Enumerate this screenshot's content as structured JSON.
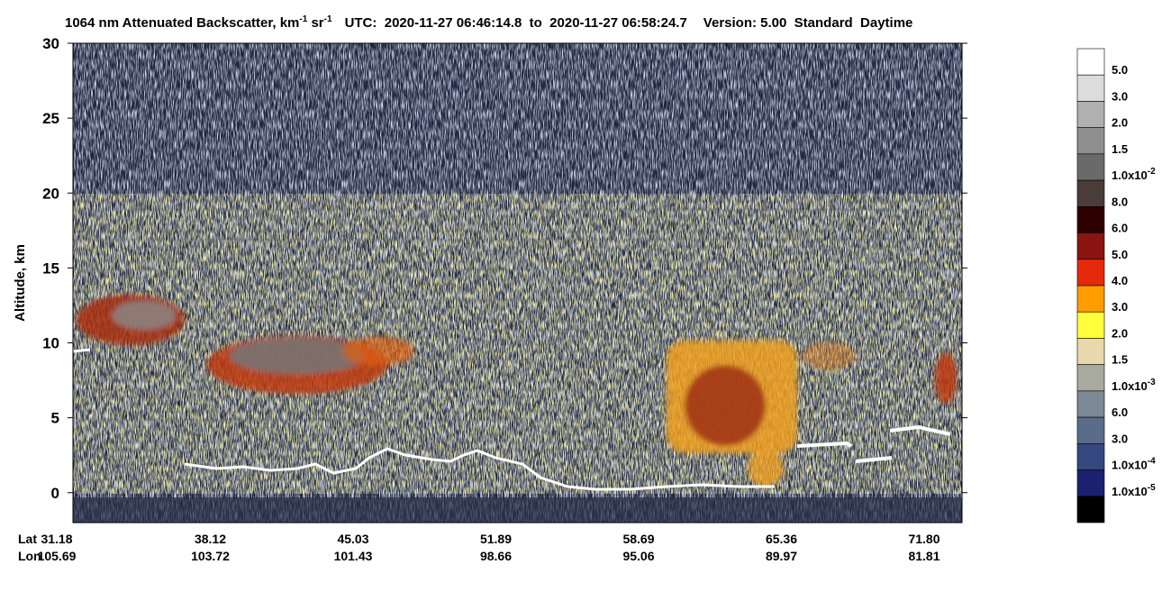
{
  "chart_data": {
    "type": "heatmap",
    "title": {
      "product": "1064 nm Attenuated Backscatter, km",
      "exp1": "-1",
      "sr": " sr",
      "exp2": "-1",
      "utc": "UTC:  2020-11-27 06:46:14.8  to  2020-11-27 06:58:24.7",
      "version": "Version: 5.00  Standard  Daytime"
    },
    "ylabel": "Altitude, km",
    "ylim": [
      -2,
      30
    ],
    "yticks": [
      0,
      5,
      10,
      15,
      20,
      25,
      30
    ],
    "x_rows": [
      {
        "label": "Lat",
        "values": [
          "31.18",
          "38.12",
          "45.03",
          "51.89",
          "58.69",
          "65.36",
          "71.80"
        ]
      },
      {
        "label": "Lon",
        "values": [
          "105.69",
          "103.72",
          "101.43",
          "98.66",
          "95.06",
          "89.97",
          "81.81"
        ]
      }
    ],
    "colorbar": {
      "colors": [
        "#ffffff",
        "#dcdcdc",
        "#b0b0b0",
        "#8e8e8e",
        "#6a6a6a",
        "#4a3c38",
        "#2e0000",
        "#8a1410",
        "#e8280a",
        "#ff9c00",
        "#ffff3c",
        "#e8d8ac",
        "#a8aaa0",
        "#7c8894",
        "#5a6c88",
        "#344880",
        "#1c2070",
        "#000000"
      ],
      "labels": [
        {
          "text": "5.0"
        },
        {
          "text": "3.0"
        },
        {
          "text": "2.0"
        },
        {
          "text": "1.5"
        },
        {
          "text": "1.0x10",
          "exp": "-2"
        },
        {
          "text": "8.0"
        },
        {
          "text": "6.0"
        },
        {
          "text": "5.0"
        },
        {
          "text": "4.0"
        },
        {
          "text": "3.0"
        },
        {
          "text": "2.0"
        },
        {
          "text": "1.5"
        },
        {
          "text": "1.0x10",
          "exp": "-3"
        },
        {
          "text": "6.0"
        },
        {
          "text": "3.0"
        },
        {
          "text": "1.0x10",
          "exp": "-4"
        },
        {
          "text": "1.0x10",
          "exp": "-5"
        }
      ]
    }
  }
}
